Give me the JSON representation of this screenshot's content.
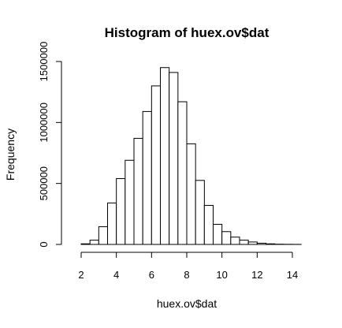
{
  "chart_data": {
    "type": "bar",
    "title": "Histogram of huex.ov$dat",
    "xlabel": "huex.ov$dat",
    "ylabel": "Frequency",
    "xlim": [
      1.5,
      14.5
    ],
    "ylim": [
      0,
      1500000
    ],
    "x_ticks": [
      2,
      4,
      6,
      8,
      10,
      12,
      14
    ],
    "x_tick_labels": [
      "2",
      "4",
      "6",
      "8",
      "10",
      "12",
      "14"
    ],
    "y_ticks": [
      0,
      500000,
      1000000,
      1500000
    ],
    "y_tick_labels": [
      "0",
      "500000",
      "1000000",
      "1500000"
    ],
    "bins": [
      {
        "start": 2.0,
        "end": 2.5,
        "count": 5000
      },
      {
        "start": 2.5,
        "end": 3.0,
        "count": 35000
      },
      {
        "start": 3.0,
        "end": 3.5,
        "count": 145000
      },
      {
        "start": 3.5,
        "end": 4.0,
        "count": 340000
      },
      {
        "start": 4.0,
        "end": 4.5,
        "count": 540000
      },
      {
        "start": 4.5,
        "end": 5.0,
        "count": 690000
      },
      {
        "start": 5.0,
        "end": 5.5,
        "count": 870000
      },
      {
        "start": 5.5,
        "end": 6.0,
        "count": 1090000
      },
      {
        "start": 6.0,
        "end": 6.5,
        "count": 1300000
      },
      {
        "start": 6.5,
        "end": 7.0,
        "count": 1450000
      },
      {
        "start": 7.0,
        "end": 7.5,
        "count": 1410000
      },
      {
        "start": 7.5,
        "end": 8.0,
        "count": 1170000
      },
      {
        "start": 8.0,
        "end": 8.5,
        "count": 825000
      },
      {
        "start": 8.5,
        "end": 9.0,
        "count": 525000
      },
      {
        "start": 9.0,
        "end": 9.5,
        "count": 320000
      },
      {
        "start": 9.5,
        "end": 10.0,
        "count": 165000
      },
      {
        "start": 10.0,
        "end": 10.5,
        "count": 105000
      },
      {
        "start": 10.5,
        "end": 11.0,
        "count": 60000
      },
      {
        "start": 11.0,
        "end": 11.5,
        "count": 35000
      },
      {
        "start": 11.5,
        "end": 12.0,
        "count": 20000
      },
      {
        "start": 12.0,
        "end": 12.5,
        "count": 10000
      },
      {
        "start": 12.5,
        "end": 13.0,
        "count": 5000
      },
      {
        "start": 13.0,
        "end": 13.5,
        "count": 2000
      },
      {
        "start": 13.5,
        "end": 14.0,
        "count": 1000
      },
      {
        "start": 14.0,
        "end": 14.5,
        "count": 500
      }
    ]
  }
}
